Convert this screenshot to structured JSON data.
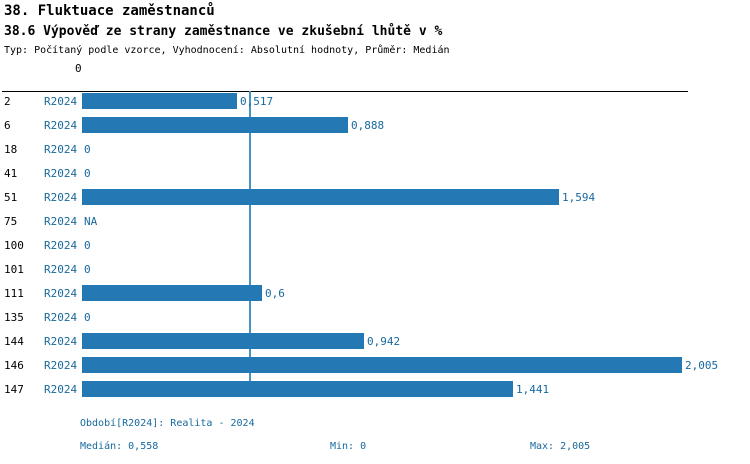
{
  "header": {
    "title": "38. Fluktuace zaměstnanců",
    "subtitle": "38.6 Výpověď ze strany zaměstnance ve zkušební lhůtě v %",
    "meta": "Typ: Počítaný podle vzorce, Vyhodnocení: Absolutní hodnoty, Průměr: Medián"
  },
  "chart_data": {
    "type": "bar",
    "orientation": "horizontal",
    "title": "38.6 Výpověď ze strany zaměstnance ve zkušební lhůtě v %",
    "axis_zero_label": "0",
    "categories": [
      "2",
      "6",
      "18",
      "41",
      "51",
      "75",
      "100",
      "101",
      "111",
      "135",
      "144",
      "146",
      "147"
    ],
    "series_label": "R2024",
    "values": [
      0.517,
      0.888,
      0,
      0,
      1.594,
      null,
      0,
      0,
      0.6,
      0,
      0.942,
      2.005,
      1.441
    ],
    "value_labels": [
      "0,517",
      "0,888",
      "0",
      "0",
      "1,594",
      "NA",
      "0",
      "0",
      "0,6",
      "0",
      "0,942",
      "2,005",
      "1,441"
    ],
    "xlim": [
      0,
      2.005
    ],
    "median": 0.558,
    "bar_color": "#2478b4",
    "median_line_color": "#4a94c4",
    "label_color": "#17699e",
    "grid": false,
    "legend_position": "none"
  },
  "footer": {
    "period_label": "Období[R2024]: Realita - 2024",
    "median_label": "Medián: 0,558",
    "min_label": "Min: 0",
    "max_label": "Max: 2,005"
  }
}
